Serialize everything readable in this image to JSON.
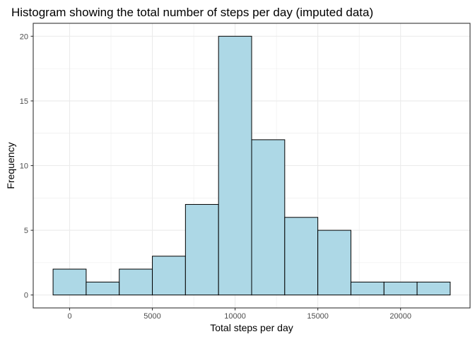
{
  "chart_data": {
    "type": "bar",
    "title": "Histogram showing the total number of steps per day (imputed data)",
    "xlabel": "Total steps per day",
    "ylabel": "Frequency",
    "bin_width": 2000,
    "bins": [
      {
        "start": -1000,
        "end": 1000,
        "count": 2
      },
      {
        "start": 1000,
        "end": 3000,
        "count": 1
      },
      {
        "start": 3000,
        "end": 5000,
        "count": 2
      },
      {
        "start": 5000,
        "end": 7000,
        "count": 3
      },
      {
        "start": 7000,
        "end": 9000,
        "count": 7
      },
      {
        "start": 9000,
        "end": 11000,
        "count": 20
      },
      {
        "start": 11000,
        "end": 13000,
        "count": 12
      },
      {
        "start": 13000,
        "end": 15000,
        "count": 6
      },
      {
        "start": 15000,
        "end": 17000,
        "count": 5
      },
      {
        "start": 17000,
        "end": 19000,
        "count": 1
      },
      {
        "start": 19000,
        "end": 21000,
        "count": 1
      },
      {
        "start": 21000,
        "end": 23000,
        "count": 1
      }
    ],
    "xlim": [
      -2200,
      24200
    ],
    "ylim": [
      -1,
      21
    ],
    "xticks": [
      0,
      5000,
      10000,
      15000,
      20000
    ],
    "xtick_labels": [
      "0",
      "5000",
      "10000",
      "15000",
      "20000"
    ],
    "yticks": [
      0,
      5,
      10,
      15,
      20
    ],
    "ytick_labels": [
      "0",
      "5",
      "10",
      "15",
      "20"
    ],
    "grid": true,
    "bar_fill": "#add8e6",
    "bar_stroke": "#000000",
    "grid_color": "#ebebeb",
    "panel_border_color": "#333333"
  }
}
